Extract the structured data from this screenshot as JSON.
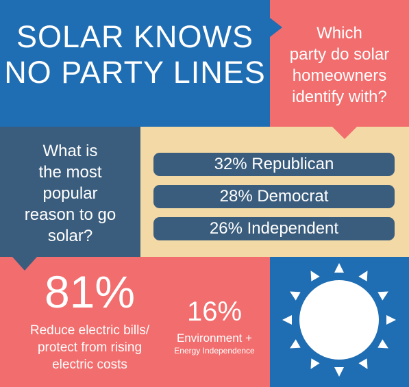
{
  "colors": {
    "blue": "#1f6db2",
    "coral": "#f26d6d",
    "slate": "#3b5d7d",
    "sand": "#f3d9a6",
    "white": "#ffffff"
  },
  "title": {
    "line1": "SOLAR KNOWS",
    "line2": "NO PARTY LINES"
  },
  "party_question": {
    "line1": "Which",
    "line2": "party do solar",
    "line3": "homeowners",
    "line4": "identify with?"
  },
  "reason_question": {
    "line1": "What is",
    "line2": "the most",
    "line3": "popular",
    "line4": "reason to go",
    "line5": "solar?"
  },
  "party_stats": [
    {
      "label": "32% Republican",
      "percent": 32
    },
    {
      "label": "28% Democrat",
      "percent": 28
    },
    {
      "label": "26% Independent",
      "percent": 26
    }
  ],
  "reasons": {
    "primary": {
      "value": "81%",
      "line1": "Reduce electric bills/",
      "line2": "protect from rising",
      "line3": "electric costs"
    },
    "secondary": {
      "value": "16%",
      "line1": "Environment +",
      "line2": "Energy Independence"
    }
  },
  "icons": {
    "sun": "sun-icon"
  }
}
